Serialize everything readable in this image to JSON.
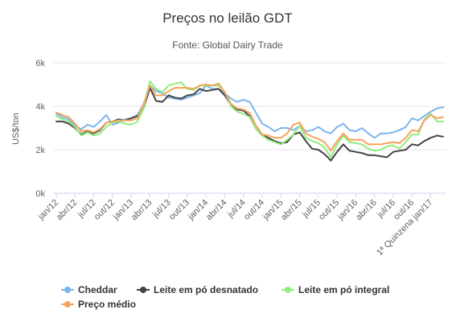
{
  "chart_data": {
    "type": "line",
    "title": "Preços no leilão GDT",
    "subtitle": "Fonte: Global Dairy Trade",
    "ylabel": "US$/ton",
    "xlabel": "",
    "ylim": [
      0,
      6000
    ],
    "yticks": [
      0,
      2000,
      4000,
      6000
    ],
    "ytick_labels": [
      "0k",
      "2k",
      "4k",
      "6k"
    ],
    "grid": true,
    "legend_position": "bottom",
    "x_tick_labels": [
      {
        "index": 0,
        "label": "jan/12"
      },
      {
        "index": 3,
        "label": "abr/12"
      },
      {
        "index": 6,
        "label": "jul/12"
      },
      {
        "index": 9,
        "label": "out/12"
      },
      {
        "index": 12,
        "label": "jan/13"
      },
      {
        "index": 15,
        "label": "abr/13"
      },
      {
        "index": 18,
        "label": "jul/13"
      },
      {
        "index": 21,
        "label": "out/13"
      },
      {
        "index": 24,
        "label": "jan/14"
      },
      {
        "index": 27,
        "label": "abr/14"
      },
      {
        "index": 30,
        "label": "jul/14"
      },
      {
        "index": 33,
        "label": "out/14"
      },
      {
        "index": 36,
        "label": "jan/15"
      },
      {
        "index": 39,
        "label": "abr/15"
      },
      {
        "index": 42,
        "label": "jul/15"
      },
      {
        "index": 45,
        "label": "out/15"
      },
      {
        "index": 48,
        "label": "jan/16"
      },
      {
        "index": 51,
        "label": "abr/16"
      },
      {
        "index": 54,
        "label": "jul/16"
      },
      {
        "index": 57,
        "label": "out/16"
      },
      {
        "index": 60,
        "label": "1ª Quinzena jan/17"
      }
    ],
    "series": [
      {
        "name": "Cheddar",
        "color": "#7cb5ec",
        "values": [
          3650,
          3500,
          3400,
          3100,
          2950,
          3150,
          3050,
          3300,
          3600,
          3150,
          3250,
          3400,
          3450,
          3600,
          4100,
          4950,
          4700,
          4600,
          4400,
          4350,
          4300,
          4400,
          4500,
          4600,
          4950,
          4800,
          4800,
          4600,
          4350,
          4200,
          4300,
          4200,
          3700,
          3200,
          3050,
          2850,
          3000,
          3000,
          2900,
          3100,
          2850,
          2900,
          3050,
          2850,
          2750,
          3050,
          3200,
          2900,
          2850,
          3000,
          2750,
          2550,
          2750,
          2750,
          2800,
          2900,
          3050,
          3450,
          3350,
          3550,
          3750,
          3900,
          3950
        ]
      },
      {
        "name": "Leite em pó desnatado",
        "color": "#434348",
        "values": [
          3300,
          3300,
          3200,
          3000,
          2700,
          2850,
          2750,
          2900,
          3250,
          3300,
          3400,
          3350,
          3450,
          3550,
          3900,
          4850,
          4250,
          4200,
          4500,
          4400,
          4350,
          4500,
          4550,
          4800,
          4700,
          4750,
          4800,
          4500,
          4050,
          3850,
          3800,
          3550,
          3100,
          2700,
          2550,
          2400,
          2300,
          2350,
          2700,
          2800,
          2400,
          2050,
          2000,
          1800,
          1500,
          1900,
          2250,
          1950,
          1900,
          1850,
          1750,
          1750,
          1700,
          1650,
          1900,
          1950,
          2000,
          2250,
          2200,
          2400,
          2550,
          2650,
          2600
        ]
      },
      {
        "name": "Leite em pó integral",
        "color": "#90ed7d",
        "values": [
          3550,
          3400,
          3300,
          3050,
          2650,
          2800,
          2650,
          2750,
          3050,
          3250,
          3300,
          3200,
          3150,
          3300,
          3900,
          5150,
          4800,
          4650,
          4950,
          5050,
          5100,
          4800,
          4750,
          4950,
          4950,
          4950,
          4950,
          4650,
          4000,
          3750,
          3650,
          3500,
          2950,
          2650,
          2450,
          2350,
          2250,
          2450,
          2700,
          3100,
          2550,
          2400,
          2300,
          2100,
          1650,
          2250,
          2650,
          2350,
          2300,
          2250,
          2050,
          1950,
          2000,
          2150,
          2200,
          2050,
          2350,
          2700,
          2700,
          3400,
          3650,
          3300,
          3300
        ]
      },
      {
        "name": "Preço médio",
        "color": "#f7a35c",
        "values": [
          3700,
          3600,
          3500,
          3200,
          2850,
          2900,
          2800,
          2950,
          3250,
          3300,
          3350,
          3350,
          3350,
          3450,
          4100,
          4950,
          4500,
          4500,
          4700,
          4850,
          4850,
          4850,
          4800,
          4950,
          5000,
          4950,
          5050,
          4650,
          4100,
          3900,
          3850,
          3700,
          3100,
          2700,
          2650,
          2550,
          2550,
          2750,
          3150,
          3250,
          2750,
          2600,
          2500,
          2350,
          1950,
          2400,
          2750,
          2450,
          2450,
          2450,
          2250,
          2250,
          2250,
          2300,
          2350,
          2300,
          2550,
          2900,
          2850,
          3350,
          3600,
          3450,
          3500
        ]
      }
    ]
  }
}
